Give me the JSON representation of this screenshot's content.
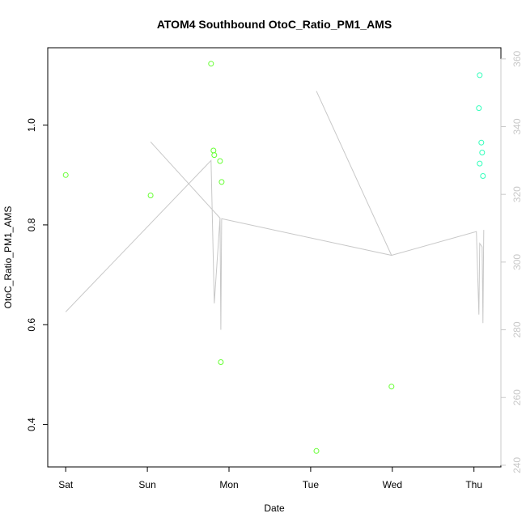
{
  "chart_data": {
    "type": "scatter",
    "title": "ATOM4 Southbound OtoC_Ratio_PM1_AMS",
    "xlabel": "Date",
    "ylabel": "OtoC_Ratio_PM1_AMS",
    "x_ticks": [
      "Sat",
      "Sun",
      "Mon",
      "Tue",
      "Wed",
      "Thu"
    ],
    "x_tick_days": [
      0,
      1,
      2,
      3,
      4,
      5
    ],
    "xlim": [
      -0.22,
      5.33
    ],
    "ylim": [
      0.315,
      1.155
    ],
    "y_ticks": [
      0.4,
      0.6,
      0.8,
      1.0
    ],
    "y_tick_labels": [
      "0.4",
      "0.6",
      "0.8",
      "1.0"
    ],
    "y2lim": [
      239.5,
      363.3
    ],
    "y2_ticks": [
      240,
      260,
      280,
      300,
      320,
      340,
      360
    ],
    "grid": false,
    "series": [
      {
        "style": "points",
        "color": "#66ff33",
        "axis": "left",
        "points": [
          {
            "x": 0.0,
            "y": 0.9
          },
          {
            "x": 1.04,
            "y": 0.859
          },
          {
            "x": 1.78,
            "y": 1.123
          },
          {
            "x": 1.81,
            "y": 0.949
          },
          {
            "x": 1.82,
            "y": 0.94
          },
          {
            "x": 1.89,
            "y": 0.928
          },
          {
            "x": 1.91,
            "y": 0.886
          },
          {
            "x": 1.9,
            "y": 0.525
          },
          {
            "x": 3.07,
            "y": 0.347
          },
          {
            "x": 3.99,
            "y": 0.476
          }
        ]
      },
      {
        "style": "points",
        "color": "#33ffbb",
        "axis": "left",
        "points": [
          {
            "x": 5.07,
            "y": 1.1
          },
          {
            "x": 5.06,
            "y": 1.034
          },
          {
            "x": 5.09,
            "y": 0.965
          },
          {
            "x": 5.1,
            "y": 0.945
          },
          {
            "x": 5.07,
            "y": 0.923
          },
          {
            "x": 5.11,
            "y": 0.898
          }
        ]
      },
      {
        "style": "line",
        "color": "#c8c8c8",
        "axis": "right",
        "points": [
          {
            "x": 0.0,
            "y": 285.3
          },
          {
            "x": 1.78,
            "y": 330.0
          },
          {
            "x": 1.82,
            "y": 287.8
          },
          {
            "x": 1.89,
            "y": 313.0
          },
          {
            "x": 1.04,
            "y": 335.5
          },
          {
            "x": 1.89,
            "y": 313.0
          },
          {
            "x": 1.9,
            "y": 280.0
          },
          {
            "x": 1.91,
            "y": 312.8
          },
          {
            "x": 3.99,
            "y": 302.0
          },
          {
            "x": 3.07,
            "y": 350.5
          },
          {
            "x": 3.99,
            "y": 302.0
          },
          {
            "x": 5.03,
            "y": 309.0
          },
          {
            "x": 5.06,
            "y": 284.5
          },
          {
            "x": 5.07,
            "y": 305.5
          },
          {
            "x": 5.1,
            "y": 304.5
          },
          {
            "x": 5.11,
            "y": 282.0
          },
          {
            "x": 5.12,
            "y": 309.5
          }
        ]
      }
    ]
  }
}
